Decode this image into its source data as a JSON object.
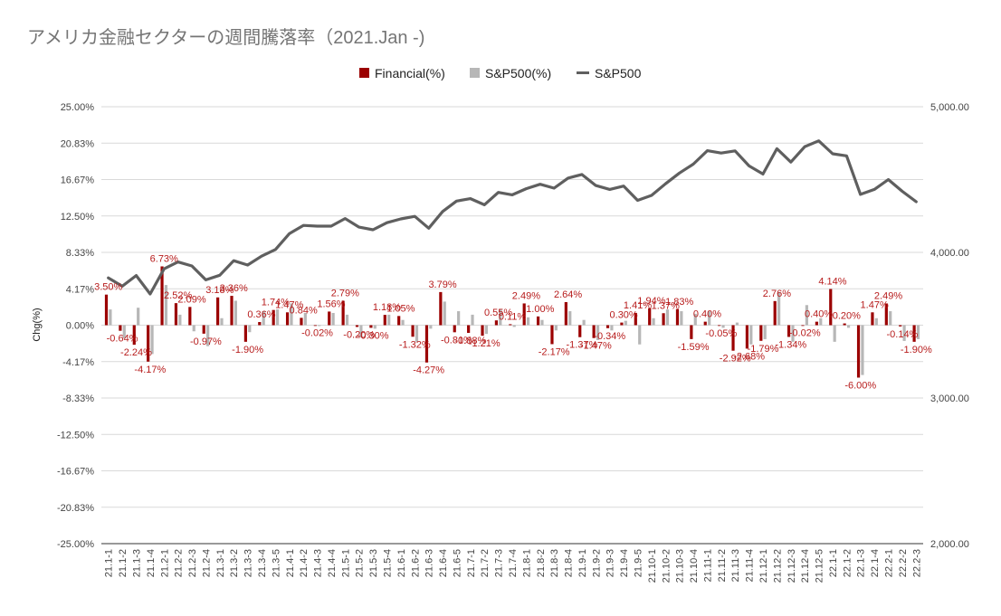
{
  "chart_data": {
    "type": "bar+line",
    "title": "アメリカ金融セクターの週間騰落率（2021.Jan -)",
    "ylabel": "Chg(%)",
    "ylim": [
      -25,
      25
    ],
    "y_ticks": [
      "25.00%",
      "20.83%",
      "16.67%",
      "12.50%",
      "8.33%",
      "4.17%",
      "0.00%",
      "-4.17%",
      "-8.33%",
      "-12.50%",
      "-16.67%",
      "-20.83%",
      "-25.00%"
    ],
    "y2lim": [
      2000,
      5000
    ],
    "y2_ticks": [
      "5,000.00",
      "4,000.00",
      "3,000.00",
      "2,000.00"
    ],
    "legend": [
      {
        "name": "Financial(%)",
        "color": "#9b0000",
        "shape": "square"
      },
      {
        "name": "S&P500(%)",
        "color": "#b7b7b7",
        "shape": "square"
      },
      {
        "name": "S&P500",
        "color": "#5f5f5f",
        "shape": "line"
      }
    ],
    "categories": [
      "21.1-1",
      "21.1-2",
      "21.1-3",
      "21.1-4",
      "21.2-1",
      "21.2-2",
      "21.2-3",
      "21.2-4",
      "21.3-1",
      "21.3-2",
      "21.3-3",
      "21.3-4",
      "21.3-5",
      "21.4-1",
      "21.4-2",
      "21.4-3",
      "21.4-4",
      "21.5-1",
      "21.5-2",
      "21.5-3",
      "21.5-4",
      "21.6-1",
      "21.6-2",
      "21.6-3",
      "21.6-4",
      "21.6-5",
      "21.7-1",
      "21.7-2",
      "21.7-3",
      "21.7-4",
      "21.8-1",
      "21.8-2",
      "21.8-3",
      "21.8-4",
      "21.9-1",
      "21.9-2",
      "21.9-3",
      "21.9-4",
      "21.9-5",
      "21.10-1",
      "21.10-2",
      "21.10-3",
      "21.10-4",
      "21.11-1",
      "21.11-2",
      "21.11-3",
      "21.11-4",
      "21.12-1",
      "21.12-2",
      "21.12-3",
      "21.12-4",
      "21.12-5",
      "22.1-1",
      "22.1-2",
      "22.1-3",
      "22.1-4",
      "22.2-1",
      "22.2-2",
      "22.2-3"
    ],
    "series": [
      {
        "name": "Financial(%)",
        "color": "#9b0000",
        "axis": "left",
        "values": [
          3.5,
          -0.64,
          -2.24,
          -4.17,
          6.73,
          2.52,
          2.09,
          -0.97,
          3.18,
          3.36,
          -1.9,
          0.36,
          1.74,
          1.47,
          0.84,
          -0.02,
          1.56,
          2.79,
          -0.2,
          -0.3,
          1.18,
          1.05,
          -1.32,
          -4.27,
          3.79,
          -0.81,
          -0.88,
          -1.21,
          0.55,
          0.11,
          2.49,
          1.0,
          -2.17,
          2.64,
          -1.37,
          -1.47,
          -0.34,
          0.3,
          1.41,
          1.94,
          1.37,
          1.83,
          -1.59,
          0.4,
          -0.05,
          -2.92,
          -2.68,
          -1.79,
          2.76,
          -1.34,
          -0.02,
          0.4,
          4.14,
          0.2,
          -6.0,
          1.47,
          2.49,
          -0.14,
          -1.9
        ]
      },
      {
        "name": "S&P500(%)",
        "color": "#b7b7b7",
        "axis": "left",
        "values": [
          1.8,
          -1.5,
          2.0,
          -3.3,
          4.6,
          1.2,
          -0.7,
          -2.4,
          0.8,
          2.8,
          -0.8,
          1.6,
          1.8,
          2.5,
          1.4,
          -0.1,
          1.4,
          1.2,
          -1.4,
          -0.4,
          1.2,
          0.6,
          -1.9,
          -0.4,
          2.7,
          1.6,
          1.2,
          -1.0,
          1.8,
          -0.2,
          0.9,
          0.6,
          -0.6,
          1.6,
          0.6,
          -1.7,
          -0.6,
          0.5,
          -2.2,
          0.8,
          1.8,
          1.6,
          1.3,
          1.6,
          -0.3,
          0.3,
          -2.2,
          -1.6,
          3.8,
          -1.9,
          2.3,
          0.8,
          -1.9,
          -0.3,
          -5.7,
          0.8,
          1.6,
          -1.8,
          -1.6
        ]
      },
      {
        "name": "S&P500",
        "color": "#5f5f5f",
        "axis": "right",
        "values": [
          3825,
          3768,
          3841,
          3714,
          3887,
          3934,
          3907,
          3811,
          3843,
          3943,
          3913,
          3974,
          4020,
          4129,
          4185,
          4180,
          4180,
          4232,
          4173,
          4155,
          4204,
          4230,
          4247,
          4166,
          4281,
          4352,
          4369,
          4327,
          4412,
          4395,
          4437,
          4468,
          4441,
          4510,
          4535,
          4459,
          4432,
          4455,
          4357,
          4391,
          4471,
          4545,
          4606,
          4698,
          4682,
          4697,
          4594,
          4538,
          4712,
          4620,
          4726,
          4766,
          4677,
          4663,
          4398,
          4432,
          4500,
          4419,
          4348
        ]
      }
    ],
    "data_labels": [
      {
        "i": 0,
        "text": "3.50%"
      },
      {
        "i": 1,
        "text": "-0.64%"
      },
      {
        "i": 2,
        "text": "-2.24%"
      },
      {
        "i": 3,
        "text": "-4.17%"
      },
      {
        "i": 4,
        "text": "6.73%"
      },
      {
        "i": 5,
        "text": "2.52%"
      },
      {
        "i": 6,
        "text": "2.09%"
      },
      {
        "i": 7,
        "text": "-0.97%"
      },
      {
        "i": 8,
        "text": "3.18%"
      },
      {
        "i": 9,
        "text": "3.36%"
      },
      {
        "i": 10,
        "text": "-1.90%"
      },
      {
        "i": 11,
        "text": "0.36%"
      },
      {
        "i": 12,
        "text": "1.74%"
      },
      {
        "i": 13,
        "text": "1.47%"
      },
      {
        "i": 14,
        "text": "0.84%"
      },
      {
        "i": 15,
        "text": "-0.02%"
      },
      {
        "i": 16,
        "text": "1.56%"
      },
      {
        "i": 17,
        "text": "2.79%"
      },
      {
        "i": 18,
        "text": "-0.20%"
      },
      {
        "i": 19,
        "text": "-0.30%"
      },
      {
        "i": 20,
        "text": "1.18%"
      },
      {
        "i": 21,
        "text": "1.05%"
      },
      {
        "i": 22,
        "text": "-1.32%"
      },
      {
        "i": 23,
        "text": "-4.27%"
      },
      {
        "i": 24,
        "text": "3.79%"
      },
      {
        "i": 25,
        "text": "-0.81%"
      },
      {
        "i": 26,
        "text": "-0.88%"
      },
      {
        "i": 27,
        "text": "-1.21%"
      },
      {
        "i": 28,
        "text": "0.55%"
      },
      {
        "i": 29,
        "text": "0.11%"
      },
      {
        "i": 30,
        "text": "2.49%"
      },
      {
        "i": 31,
        "text": "1.00%"
      },
      {
        "i": 32,
        "text": "-2.17%"
      },
      {
        "i": 33,
        "text": "2.64%"
      },
      {
        "i": 34,
        "text": "-1.37%"
      },
      {
        "i": 35,
        "text": "-1.47%"
      },
      {
        "i": 36,
        "text": "-0.34%"
      },
      {
        "i": 37,
        "text": "0.30%"
      },
      {
        "i": 38,
        "text": "1.41%"
      },
      {
        "i": 39,
        "text": "1.94%"
      },
      {
        "i": 40,
        "text": "1.37%"
      },
      {
        "i": 41,
        "text": "1.83%"
      },
      {
        "i": 42,
        "text": "-1.59%"
      },
      {
        "i": 43,
        "text": "0.40%"
      },
      {
        "i": 44,
        "text": "-0.05%"
      },
      {
        "i": 45,
        "text": "-2.92%"
      },
      {
        "i": 46,
        "text": "-2.68%"
      },
      {
        "i": 47,
        "text": "-1.79%"
      },
      {
        "i": 48,
        "text": "2.76%"
      },
      {
        "i": 49,
        "text": "-1.34%"
      },
      {
        "i": 50,
        "text": "-0.02%"
      },
      {
        "i": 51,
        "text": "0.40%"
      },
      {
        "i": 52,
        "text": "4.14%"
      },
      {
        "i": 53,
        "text": "0.20%"
      },
      {
        "i": 54,
        "text": "-6.00%"
      },
      {
        "i": 55,
        "text": "1.47%"
      },
      {
        "i": 56,
        "text": "2.49%"
      },
      {
        "i": 57,
        "text": "-0.14%"
      },
      {
        "i": 58,
        "text": "-1.90%"
      }
    ],
    "grid": true,
    "legend_position": "top-center"
  }
}
